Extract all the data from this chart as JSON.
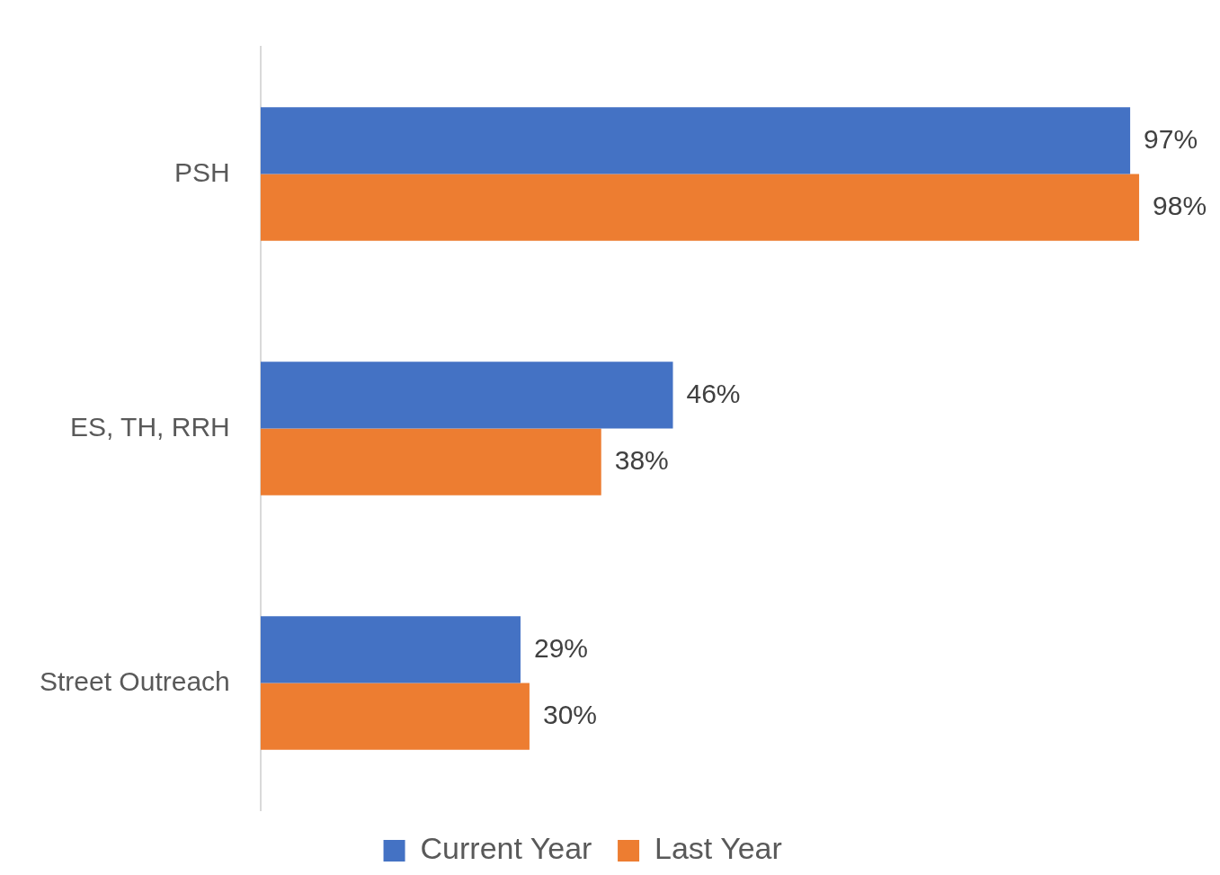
{
  "chart_data": {
    "type": "bar",
    "orientation": "horizontal",
    "categories": [
      "PSH",
      "ES, TH, RRH",
      "Street Outreach"
    ],
    "series": [
      {
        "name": "Current Year",
        "color": "#4472c4",
        "values": [
          97,
          46,
          29
        ],
        "value_labels": [
          "97%",
          "46%",
          "29%"
        ]
      },
      {
        "name": "Last Year",
        "color": "#ed7d31",
        "values": [
          98,
          38,
          30
        ],
        "value_labels": [
          "98%",
          "38%",
          "30%"
        ]
      }
    ],
    "legend": "bottom",
    "tick_labels": "y"
  }
}
